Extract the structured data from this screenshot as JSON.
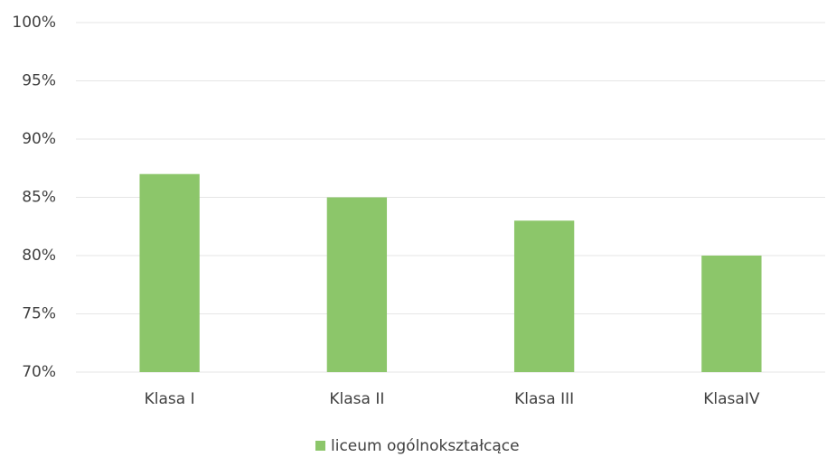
{
  "chart_data": {
    "type": "bar",
    "categories": [
      "Klasa I",
      "Klasa II",
      "Klasa III",
      "KlasaIV"
    ],
    "series": [
      {
        "name": "liceum ogólnokształcące",
        "color": "#8cc66a",
        "values": [
          87,
          85,
          83,
          80
        ]
      }
    ],
    "ylim": [
      70,
      100
    ],
    "yticks": [
      {
        "value": 70,
        "label": "70%"
      },
      {
        "value": 75,
        "label": "75%"
      },
      {
        "value": 80,
        "label": "80%"
      },
      {
        "value": 85,
        "label": "85%"
      },
      {
        "value": 90,
        "label": "90%"
      },
      {
        "value": 95,
        "label": "95%"
      },
      {
        "value": 100,
        "label": "100%"
      }
    ],
    "grid": true,
    "legend": "bottom"
  }
}
